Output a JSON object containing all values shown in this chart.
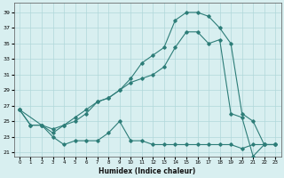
{
  "xlabel": "Humidex (Indice chaleur)",
  "ylabel": "",
  "bg_color": "#d8eff0",
  "grid_color": "#b0d8da",
  "line_color": "#2d7d78",
  "xlim": [
    -0.5,
    23.5
  ],
  "ylim": [
    20.5,
    40.2
  ],
  "xticks": [
    0,
    1,
    2,
    3,
    4,
    5,
    6,
    7,
    8,
    9,
    10,
    11,
    12,
    13,
    14,
    15,
    16,
    17,
    18,
    19,
    20,
    21,
    22,
    23
  ],
  "yticks": [
    21,
    23,
    25,
    27,
    29,
    31,
    33,
    35,
    37,
    39
  ],
  "line1_x": [
    0,
    1,
    2,
    3,
    4,
    5,
    6,
    7,
    8,
    9,
    10,
    11,
    12,
    13,
    14,
    15,
    16,
    17,
    18,
    19,
    20,
    21,
    22,
    23
  ],
  "line1_y": [
    26.5,
    24.5,
    24.5,
    23.0,
    22.0,
    22.5,
    22.5,
    22.5,
    23.5,
    25.0,
    22.5,
    22.5,
    22.0,
    22.0,
    22.0,
    22.0,
    22.0,
    22.0,
    22.0,
    22.0,
    21.5,
    22.0,
    22.0,
    22.0
  ],
  "line2_x": [
    0,
    1,
    2,
    3,
    4,
    5,
    6,
    7,
    8,
    9,
    10,
    11,
    12,
    13,
    14,
    15,
    16,
    17,
    18,
    19,
    20,
    21,
    22,
    23
  ],
  "line2_y": [
    26.5,
    24.5,
    24.5,
    24.0,
    24.5,
    25.0,
    26.0,
    27.5,
    28.0,
    29.0,
    30.0,
    30.5,
    31.0,
    32.0,
    34.5,
    36.5,
    36.5,
    35.0,
    35.5,
    26.0,
    25.5,
    20.5,
    22.0,
    22.0
  ],
  "line3_x": [
    0,
    2,
    3,
    4,
    5,
    6,
    7,
    8,
    9,
    10,
    11,
    12,
    13,
    14,
    15,
    16,
    17,
    18,
    19,
    20,
    21,
    22,
    23
  ],
  "line3_y": [
    26.5,
    24.5,
    23.5,
    24.5,
    25.5,
    26.5,
    27.5,
    28.0,
    29.0,
    30.5,
    32.5,
    33.5,
    34.5,
    38.0,
    39.0,
    39.0,
    38.5,
    37.0,
    35.0,
    26.0,
    25.0,
    22.0,
    22.0
  ]
}
